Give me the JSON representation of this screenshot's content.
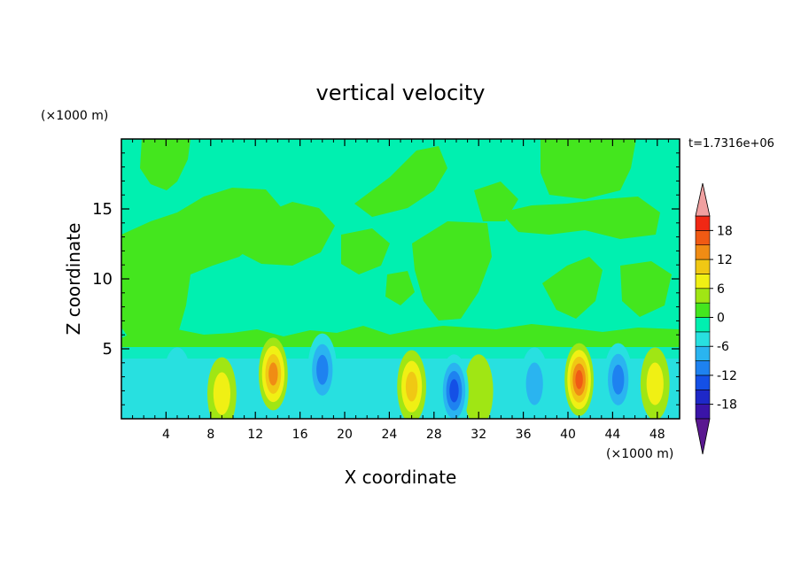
{
  "chart_data": {
    "type": "heatmap",
    "title": "vertical velocity",
    "xlabel": "X coordinate",
    "ylabel": "Z coordinate",
    "x_units": "(×1000 m)",
    "y_units": "(×1000 m)",
    "time_label": "t=1.7316e+06",
    "xlim": [
      0,
      50
    ],
    "ylim": [
      0,
      20
    ],
    "x_ticks": [
      4,
      8,
      12,
      16,
      20,
      24,
      28,
      32,
      36,
      40,
      44,
      48
    ],
    "y_ticks": [
      5,
      10,
      15
    ],
    "colorbar": {
      "levels": [
        -21,
        -18,
        -15,
        -12,
        -9,
        -6,
        -3,
        0,
        3,
        6,
        9,
        12,
        15,
        18,
        21
      ],
      "tick_labels": [
        -18,
        -12,
        -6,
        0,
        6,
        12,
        18
      ],
      "colors": [
        "#5a1890",
        "#3a14a8",
        "#1e28c8",
        "#1450e6",
        "#1e82f0",
        "#2ab4f0",
        "#28e0e0",
        "#00f0b0",
        "#44e61e",
        "#a0e614",
        "#f0f014",
        "#f0c814",
        "#f08c14",
        "#f05a14",
        "#f02814",
        "#f0a0a0"
      ],
      "extend": "both"
    },
    "features": [
      {
        "kind": "updraft",
        "x": 9,
        "z": 1.8,
        "value": 7
      },
      {
        "kind": "updraft",
        "x": 13.6,
        "z": 3.2,
        "value": 12
      },
      {
        "kind": "updraft",
        "x": 26,
        "z": 2.3,
        "value": 9
      },
      {
        "kind": "updraft",
        "x": 32,
        "z": 2.0,
        "value": 4
      },
      {
        "kind": "updraft",
        "x": 41,
        "z": 2.8,
        "value": 15
      },
      {
        "kind": "updraft",
        "x": 47.8,
        "z": 2.5,
        "value": 6
      },
      {
        "kind": "downdraft",
        "x": 5,
        "z": 2.5,
        "value": -5
      },
      {
        "kind": "downdraft",
        "x": 18,
        "z": 3.5,
        "value": -9
      },
      {
        "kind": "downdraft",
        "x": 29.8,
        "z": 2.0,
        "value": -12
      },
      {
        "kind": "downdraft",
        "x": 37,
        "z": 2.5,
        "value": -7
      },
      {
        "kind": "downdraft",
        "x": 44.5,
        "z": 2.8,
        "value": -11
      }
    ]
  }
}
